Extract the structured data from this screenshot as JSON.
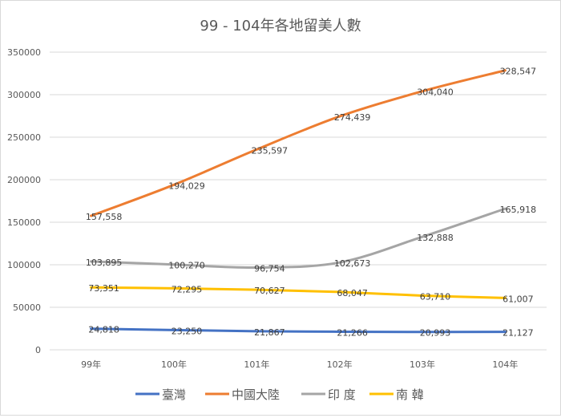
{
  "chart_data": {
    "type": "line",
    "title": "99 - 104年各地留美人數",
    "categories": [
      "99年",
      "100年",
      "101年",
      "102年",
      "103年",
      "104年"
    ],
    "ylim": [
      0,
      350000
    ],
    "yticks": [
      "0",
      "50000",
      "100000",
      "150000",
      "200000",
      "250000",
      "300000",
      "350000"
    ],
    "grid": true,
    "legend_position": "bottom",
    "series": [
      {
        "name": "臺灣",
        "color": "#4472c4",
        "values": [
          24818,
          23250,
          21867,
          21266,
          20993,
          21127
        ],
        "labels": [
          "24,818",
          "23,250",
          "21,867",
          "21,266",
          "20,993",
          "21,127"
        ]
      },
      {
        "name": "中國大陸",
        "color": "#ed7d31",
        "values": [
          157558,
          194029,
          235597,
          274439,
          304040,
          328547
        ],
        "labels": [
          "157,558",
          "194,029",
          "235,597",
          "274,439",
          "304,040",
          "328,547"
        ]
      },
      {
        "name": "印 度",
        "color": "#a5a5a5",
        "values": [
          103895,
          100270,
          96754,
          102673,
          132888,
          165918
        ],
        "labels": [
          "103,895",
          "100,270",
          "96,754",
          "102,673",
          "132,888",
          "165,918"
        ]
      },
      {
        "name": "南 韓",
        "color": "#ffc000",
        "values": [
          73351,
          72295,
          70627,
          68047,
          63710,
          61007
        ],
        "labels": [
          "73,351",
          "72,295",
          "70,627",
          "68,047",
          "63,710",
          "61,007"
        ]
      }
    ]
  }
}
